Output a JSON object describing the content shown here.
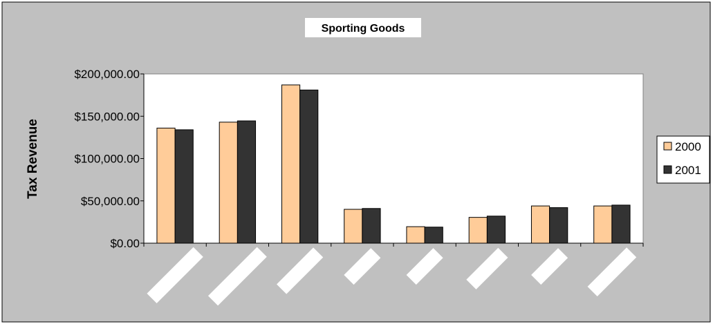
{
  "chart_data": {
    "type": "bar",
    "title": "Sporting Goods",
    "ylabel": "Tax Revenue",
    "xlabel": "",
    "categories": [
      "",
      "",
      "",
      "",
      "",
      "",
      "",
      ""
    ],
    "ylim": [
      0,
      200000
    ],
    "yticks": [
      0,
      50000,
      100000,
      150000,
      200000
    ],
    "ytick_labels": [
      "$0.00",
      "$50,000.00",
      "$100,000.00",
      "$150,000.00",
      "$200,000.00"
    ],
    "series": [
      {
        "name": "2000",
        "color": "#ffcc99",
        "values": [
          136000,
          143000,
          187000,
          40000,
          19500,
          30500,
          44000,
          44000
        ]
      },
      {
        "name": "2001",
        "color": "#333333",
        "values": [
          134000,
          144500,
          181000,
          41000,
          19000,
          32000,
          42000,
          45000
        ]
      }
    ],
    "grid": false,
    "legend_position": "right",
    "plot_background": "#ffffff",
    "chart_background": "#c0c0c0"
  }
}
